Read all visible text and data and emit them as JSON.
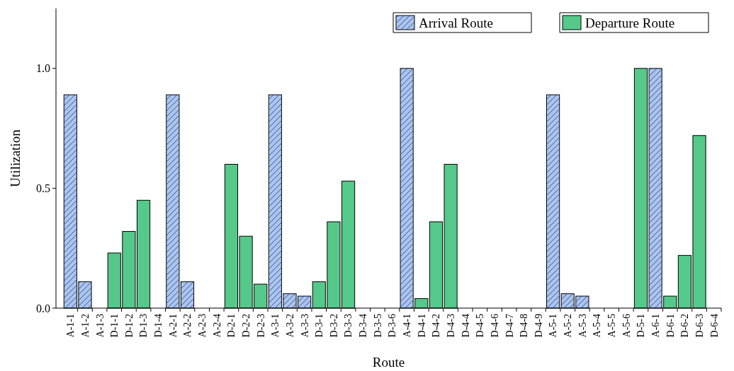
{
  "chart_data": {
    "type": "bar",
    "xlabel": "Route",
    "ylabel": "Utilization",
    "categories": [
      "A-1-1",
      "A-1-2",
      "A-1-3",
      "D-1-1",
      "D-1-2",
      "D-1-3",
      "D-1-4",
      "A-2-1",
      "A-2-2",
      "A-2-3",
      "A-2-4",
      "D-2-1",
      "D-2-2",
      "D-2-3",
      "A-3-1",
      "A-3-2",
      "A-3-3",
      "D-3-1",
      "D-3-2",
      "D-3-3",
      "D-3-4",
      "D-3-5",
      "D-3-6",
      "A-4-1",
      "D-4-1",
      "D-4-2",
      "D-4-3",
      "D-4-4",
      "D-4-5",
      "D-4-6",
      "D-4-7",
      "D-4-8",
      "D-4-9",
      "A-5-1",
      "A-5-2",
      "A-5-3",
      "A-5-4",
      "A-5-5",
      "A-5-6",
      "D-5-1",
      "A-6-1",
      "D-6-1",
      "D-6-2",
      "D-6-3",
      "D-6-4"
    ],
    "series": [
      {
        "name": "Arrival Route",
        "color": "#a9c4f0",
        "values": [
          0.89,
          0.11,
          0,
          null,
          null,
          null,
          null,
          0.89,
          0.11,
          0,
          0,
          null,
          null,
          null,
          0.89,
          0.06,
          0.05,
          null,
          null,
          null,
          null,
          null,
          null,
          1.0,
          null,
          null,
          null,
          null,
          null,
          null,
          null,
          null,
          null,
          0.89,
          0.06,
          0.05,
          0,
          0,
          0,
          null,
          1.0,
          null,
          null,
          null,
          null
        ]
      },
      {
        "name": "Departure Route",
        "color": "#55c98a",
        "values": [
          null,
          null,
          null,
          0.23,
          0.32,
          0.45,
          0,
          null,
          null,
          null,
          null,
          0.6,
          0.3,
          0.1,
          null,
          null,
          null,
          0.11,
          0.36,
          0.53,
          0,
          0,
          0,
          null,
          0.04,
          0.36,
          0.6,
          0,
          0,
          0,
          0,
          0,
          0,
          null,
          null,
          null,
          null,
          null,
          null,
          1.0,
          null,
          0.05,
          0.22,
          0.72,
          0
        ]
      }
    ],
    "ylim": [
      0,
      1.25
    ],
    "yticks": [
      {
        "value": 0,
        "label": "0.0"
      },
      {
        "value": 0.5,
        "label": "0.5"
      },
      {
        "value": 1,
        "label": "1.0"
      }
    ],
    "legend": "top right"
  }
}
